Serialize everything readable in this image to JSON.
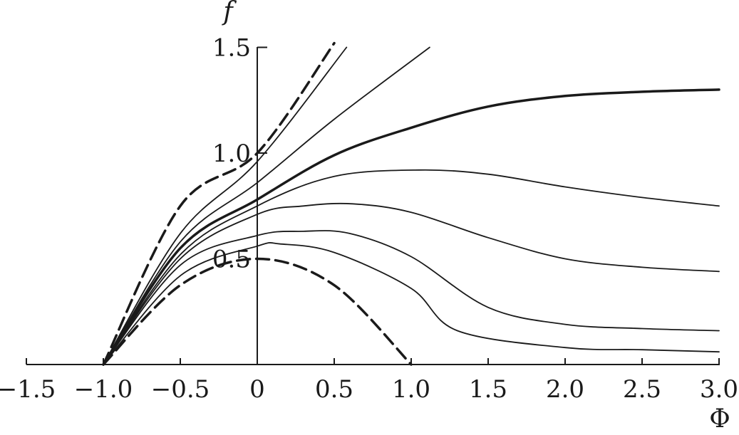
{
  "chart_data": {
    "type": "line",
    "title": "",
    "xlabel": "Φ",
    "ylabel": "f",
    "xlim": [
      -1.5,
      3.0
    ],
    "ylim": [
      0,
      1.5
    ],
    "x_ticks": [
      -1.5,
      -1.0,
      -0.5,
      0,
      0.5,
      1.0,
      1.5,
      2.0,
      2.5,
      3.0
    ],
    "x_tick_labels": [
      "−1.5",
      "−1.0",
      "−0.5",
      "0",
      "0.5",
      "1.0",
      "1.5",
      "2.0",
      "2.5",
      "3.0"
    ],
    "y_ticks": [
      0.5,
      1.0,
      1.5
    ],
    "y_tick_labels": [
      "0.5",
      "1.0",
      "1.5"
    ],
    "grid": false,
    "legend": "none",
    "series": [
      {
        "style": "dashed",
        "weight": "bold",
        "x": [
          -1.0,
          -0.5,
          0.0,
          0.5
        ],
        "y": [
          0.0,
          0.75,
          1.0,
          1.52
        ]
      },
      {
        "style": "solid",
        "weight": "thin",
        "x": [
          -1.0,
          -0.5,
          0.0,
          0.58
        ],
        "y": [
          0.0,
          0.62,
          0.96,
          1.5
        ]
      },
      {
        "style": "solid",
        "weight": "thin",
        "x": [
          -1.0,
          -0.5,
          0.0,
          0.5,
          1.12
        ],
        "y": [
          0.0,
          0.58,
          0.86,
          1.16,
          1.5
        ]
      },
      {
        "style": "solid",
        "weight": "bold",
        "x": [
          -1.0,
          -0.5,
          0.0,
          0.5,
          1.0,
          1.5,
          2.0,
          2.5,
          3.0
        ],
        "y": [
          0.0,
          0.55,
          0.78,
          0.99,
          1.12,
          1.22,
          1.27,
          1.29,
          1.3
        ]
      },
      {
        "style": "solid",
        "weight": "thin",
        "x": [
          -1.0,
          -0.5,
          0.0,
          0.5,
          1.05,
          1.5,
          2.0,
          2.5,
          3.0
        ],
        "y": [
          0.0,
          0.52,
          0.75,
          0.89,
          0.92,
          0.9,
          0.84,
          0.79,
          0.75
        ]
      },
      {
        "style": "solid",
        "weight": "thin",
        "x": [
          -1.0,
          -0.5,
          0.0,
          0.3,
          0.62,
          1.0,
          1.5,
          2.0,
          2.5,
          3.0
        ],
        "y": [
          0.0,
          0.5,
          0.71,
          0.75,
          0.76,
          0.72,
          0.6,
          0.5,
          0.46,
          0.44
        ]
      },
      {
        "style": "solid",
        "weight": "thin",
        "x": [
          -1.0,
          -0.5,
          0.0,
          0.3,
          0.6,
          1.0,
          1.5,
          2.0,
          2.5,
          3.0
        ],
        "y": [
          0.0,
          0.47,
          0.61,
          0.63,
          0.62,
          0.51,
          0.27,
          0.19,
          0.17,
          0.16
        ]
      },
      {
        "style": "solid",
        "weight": "thin",
        "x": [
          -1.0,
          -0.5,
          0.0,
          0.15,
          0.5,
          1.0,
          1.3,
          2.0,
          2.5,
          3.0
        ],
        "y": [
          0.0,
          0.42,
          0.56,
          0.57,
          0.53,
          0.36,
          0.16,
          0.08,
          0.07,
          0.06
        ]
      },
      {
        "style": "dashed",
        "weight": "bold",
        "x": [
          -1.0,
          -0.5,
          0.0,
          0.5,
          1.0
        ],
        "y": [
          0.0,
          0.375,
          0.5,
          0.375,
          0.0
        ]
      }
    ]
  }
}
